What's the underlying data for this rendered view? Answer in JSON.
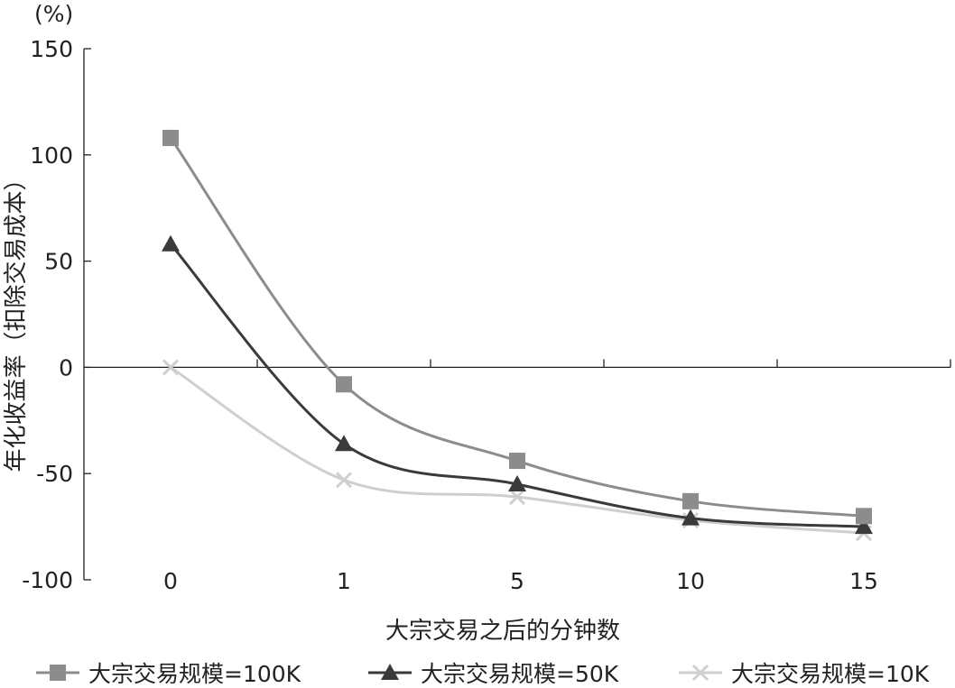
{
  "chart_data": {
    "type": "line",
    "unit_label": "(%)",
    "xlabel": "大宗交易之后的分钟数",
    "ylabel": "年化收益率（扣除交易成本）",
    "categories": [
      "0",
      "1",
      "5",
      "10",
      "15"
    ],
    "ylim": [
      -100,
      150
    ],
    "yticks": [
      "150",
      "100",
      "50",
      "0",
      "-50",
      "-100"
    ],
    "series": [
      {
        "name": "大宗交易规模=100K",
        "values": [
          108,
          -8,
          -44,
          -63,
          -70
        ],
        "color": "#8c8c8c",
        "marker": "square"
      },
      {
        "name": "大宗交易规模=50K",
        "values": [
          58,
          -36,
          -55,
          -71,
          -75
        ],
        "color": "#3a3a3a",
        "marker": "triangle"
      },
      {
        "name": "大宗交易规模=10K",
        "values": [
          0,
          -53,
          -61,
          -72,
          -78
        ],
        "color": "#cfcfcf",
        "marker": "x"
      }
    ],
    "grid": false,
    "legend_position": "bottom",
    "smooth": true
  }
}
